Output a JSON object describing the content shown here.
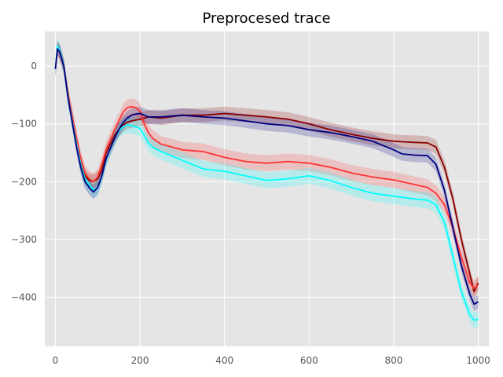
{
  "chart_data": {
    "type": "line",
    "title": "Preprocesed trace",
    "xlabel": "",
    "ylabel": "",
    "xlim": [
      -25,
      1025
    ],
    "ylim": [
      -485,
      60
    ],
    "grid": true,
    "background": "#E5E5E5",
    "x_ticks": [
      0,
      200,
      400,
      600,
      800,
      1000
    ],
    "y_ticks": [
      0,
      -100,
      -200,
      -300,
      -400
    ],
    "series": [
      {
        "color": "#8B0000",
        "band": 12,
        "x": [
          0,
          5,
          10,
          20,
          30,
          50,
          60,
          70,
          80,
          90,
          100,
          110,
          120,
          140,
          150,
          160,
          170,
          180,
          200,
          220,
          250,
          300,
          350,
          400,
          450,
          500,
          550,
          600,
          650,
          700,
          750,
          800,
          820,
          850,
          880,
          900,
          920,
          940,
          960,
          980,
          990,
          1000
        ],
        "y": [
          -5,
          30,
          25,
          0,
          -50,
          -130,
          -165,
          -190,
          -198,
          -200,
          -195,
          -180,
          -150,
          -120,
          -110,
          -102,
          -97,
          -95,
          -92,
          -88,
          -90,
          -85,
          -85,
          -82,
          -85,
          -88,
          -92,
          -100,
          -110,
          -118,
          -125,
          -130,
          -131,
          -132,
          -133,
          -140,
          -175,
          -230,
          -300,
          -360,
          -390,
          -375
        ]
      },
      {
        "color": "#FF3333",
        "band": 14,
        "x": [
          0,
          5,
          10,
          20,
          30,
          50,
          60,
          70,
          80,
          90,
          100,
          110,
          120,
          140,
          150,
          160,
          170,
          180,
          190,
          200,
          210,
          220,
          230,
          250,
          300,
          350,
          400,
          450,
          500,
          550,
          600,
          650,
          700,
          750,
          800,
          850,
          880,
          900,
          920,
          940,
          960,
          980,
          990,
          1000
        ],
        "y": [
          -5,
          30,
          25,
          0,
          -50,
          -125,
          -160,
          -185,
          -195,
          -200,
          -192,
          -170,
          -145,
          -110,
          -95,
          -80,
          -72,
          -70,
          -72,
          -78,
          -100,
          -115,
          -125,
          -135,
          -145,
          -148,
          -158,
          -165,
          -168,
          -165,
          -168,
          -175,
          -185,
          -192,
          -197,
          -205,
          -210,
          -220,
          -240,
          -280,
          -330,
          -375,
          -385,
          -378
        ]
      },
      {
        "color": "#00FFFF",
        "band": 14,
        "x": [
          0,
          5,
          10,
          20,
          30,
          50,
          60,
          70,
          80,
          90,
          100,
          110,
          120,
          140,
          150,
          160,
          170,
          180,
          190,
          200,
          210,
          220,
          230,
          250,
          300,
          350,
          400,
          450,
          500,
          550,
          600,
          650,
          700,
          750,
          800,
          850,
          880,
          900,
          920,
          940,
          960,
          980,
          990,
          1000
        ],
        "y": [
          -5,
          35,
          28,
          0,
          -55,
          -135,
          -170,
          -195,
          -205,
          -215,
          -210,
          -190,
          -160,
          -125,
          -112,
          -105,
          -102,
          -103,
          -105,
          -108,
          -120,
          -133,
          -140,
          -148,
          -163,
          -178,
          -182,
          -190,
          -198,
          -195,
          -190,
          -198,
          -210,
          -220,
          -225,
          -230,
          -232,
          -240,
          -270,
          -330,
          -390,
          -430,
          -440,
          -438
        ]
      },
      {
        "color": "#000080",
        "band": 12,
        "x": [
          0,
          5,
          10,
          20,
          30,
          50,
          60,
          70,
          80,
          90,
          100,
          110,
          120,
          140,
          150,
          160,
          170,
          180,
          190,
          200,
          210,
          220,
          250,
          300,
          350,
          400,
          450,
          500,
          550,
          600,
          650,
          700,
          750,
          800,
          820,
          850,
          880,
          900,
          920,
          940,
          960,
          980,
          990,
          1000
        ],
        "y": [
          -5,
          30,
          25,
          0,
          -55,
          -140,
          -175,
          -200,
          -210,
          -218,
          -210,
          -190,
          -160,
          -125,
          -110,
          -98,
          -90,
          -85,
          -83,
          -82,
          -85,
          -88,
          -88,
          -85,
          -88,
          -90,
          -95,
          -100,
          -103,
          -110,
          -115,
          -122,
          -130,
          -145,
          -152,
          -154,
          -155,
          -170,
          -215,
          -280,
          -345,
          -395,
          -412,
          -408
        ]
      }
    ]
  }
}
